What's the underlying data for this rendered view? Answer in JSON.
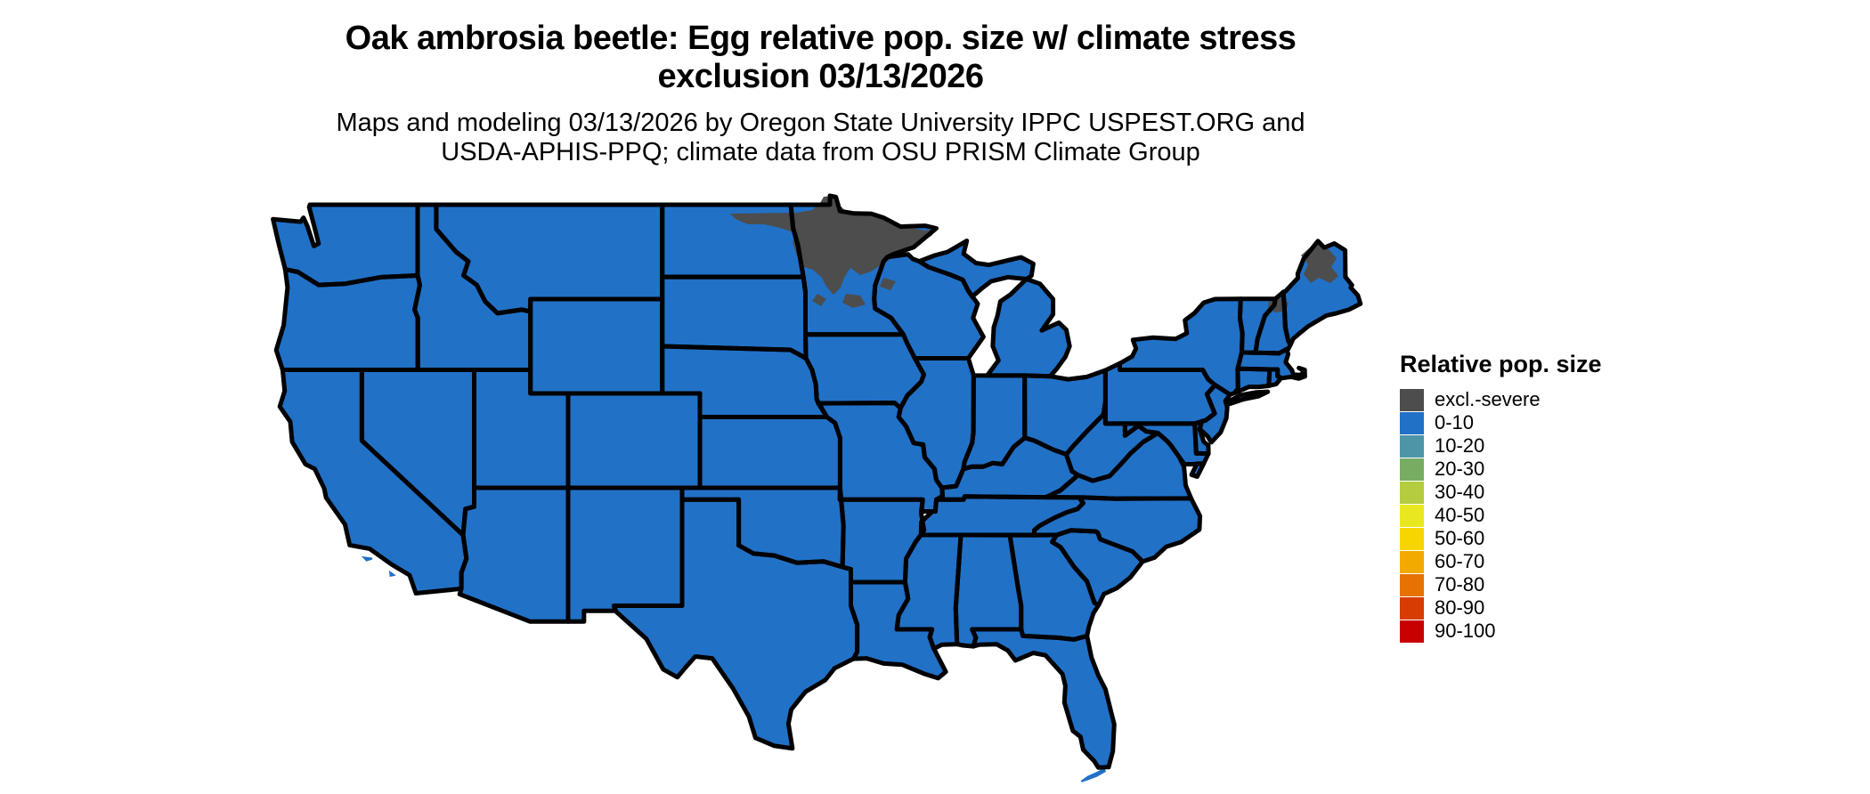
{
  "title": {
    "line1": "Oak ambrosia beetle: Egg relative pop. size w/ climate stress",
    "line2": "exclusion 03/13/2026"
  },
  "subtitle": {
    "line1": "Maps and modeling 03/13/2026 by Oregon State University IPPC USPEST.ORG and",
    "line2": "USDA-APHIS-PPQ; climate data from OSU PRISM Climate Group"
  },
  "legend": {
    "title": "Relative pop. size",
    "items": [
      {
        "label": "excl.-severe",
        "color": "#4d4d4d"
      },
      {
        "label": "0-10",
        "color": "#2171c7"
      },
      {
        "label": "10-20",
        "color": "#4e95a8"
      },
      {
        "label": "20-30",
        "color": "#77ad63"
      },
      {
        "label": "30-40",
        "color": "#b4cc3e"
      },
      {
        "label": "40-50",
        "color": "#e9e71f"
      },
      {
        "label": "50-60",
        "color": "#f7d500"
      },
      {
        "label": "60-70",
        "color": "#f2aa00"
      },
      {
        "label": "70-80",
        "color": "#e67300"
      },
      {
        "label": "80-90",
        "color": "#d73c00"
      },
      {
        "label": "90-100",
        "color": "#c90000"
      }
    ]
  },
  "map": {
    "background": "#ffffff",
    "state_border_color": "#000000",
    "default_class": "0-10",
    "default_fill": "#2171c7",
    "excluded_class": "excl.-severe",
    "excluded_fill": "#4d4d4d",
    "excluded_regions": [
      "northern Minnesota",
      "northeastern North Dakota border strip",
      "northern Maine",
      "White Mountains area (NH/VT border)"
    ]
  }
}
